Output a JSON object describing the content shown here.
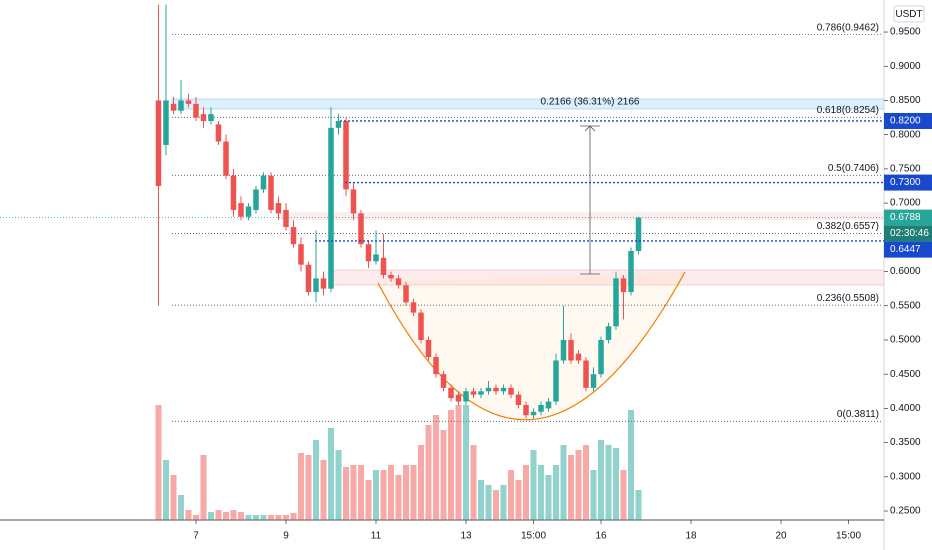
{
  "chart_data": {
    "type": "candlestick",
    "currency": "USDT",
    "up_color": "#26a69a",
    "down_color": "#ef5350",
    "open": [
      0.85,
      0.785,
      0.845,
      0.835,
      0.85,
      0.845,
      0.83,
      0.82,
      0.815,
      0.79,
      0.74,
      0.7,
      0.68,
      0.69,
      0.72,
      0.74,
      0.7,
      0.69,
      0.665,
      0.64,
      0.61,
      0.57,
      0.59,
      0.575,
      0.81,
      0.82,
      0.72,
      0.685,
      0.64,
      0.615,
      0.62,
      0.595,
      0.59,
      0.58,
      0.555,
      0.54,
      0.5,
      0.475,
      0.45,
      0.43,
      0.42,
      0.41,
      0.425,
      0.42,
      0.425,
      0.43,
      0.425,
      0.43,
      0.42,
      0.405,
      0.39,
      0.395,
      0.4,
      0.41,
      0.47,
      0.5,
      0.48,
      0.47,
      0.43,
      0.45,
      0.5,
      0.52,
      0.59,
      0.57,
      0.63
    ],
    "high": [
      0.99,
      0.99,
      0.855,
      0.88,
      0.86,
      0.855,
      0.84,
      0.84,
      0.82,
      0.8,
      0.75,
      0.71,
      0.7,
      0.725,
      0.745,
      0.745,
      0.71,
      0.7,
      0.675,
      0.65,
      0.615,
      0.66,
      0.6,
      0.84,
      0.83,
      0.825,
      0.73,
      0.69,
      0.645,
      0.66,
      0.655,
      0.6,
      0.595,
      0.585,
      0.56,
      0.545,
      0.505,
      0.48,
      0.455,
      0.435,
      0.425,
      0.43,
      0.43,
      0.43,
      0.44,
      0.435,
      0.435,
      0.435,
      0.425,
      0.41,
      0.4,
      0.41,
      0.415,
      0.48,
      0.55,
      0.51,
      0.485,
      0.475,
      0.46,
      0.505,
      0.525,
      0.6,
      0.595,
      0.635,
      0.68
    ],
    "low": [
      0.55,
      0.77,
      0.83,
      0.83,
      0.84,
      0.82,
      0.81,
      0.815,
      0.785,
      0.735,
      0.68,
      0.675,
      0.675,
      0.685,
      0.715,
      0.685,
      0.675,
      0.66,
      0.635,
      0.6,
      0.565,
      0.555,
      0.565,
      0.57,
      0.8,
      0.71,
      0.675,
      0.635,
      0.605,
      0.61,
      0.59,
      0.585,
      0.575,
      0.55,
      0.535,
      0.495,
      0.47,
      0.445,
      0.425,
      0.41,
      0.405,
      0.405,
      0.415,
      0.415,
      0.42,
      0.42,
      0.42,
      0.415,
      0.4,
      0.385,
      0.385,
      0.39,
      0.395,
      0.405,
      0.465,
      0.465,
      0.465,
      0.425,
      0.425,
      0.445,
      0.495,
      0.515,
      0.53,
      0.565,
      0.625
    ],
    "close": [
      0.725,
      0.85,
      0.835,
      0.85,
      0.845,
      0.825,
      0.82,
      0.83,
      0.79,
      0.74,
      0.69,
      0.68,
      0.695,
      0.72,
      0.74,
      0.69,
      0.685,
      0.665,
      0.64,
      0.61,
      0.57,
      0.59,
      0.575,
      0.81,
      0.82,
      0.72,
      0.685,
      0.64,
      0.615,
      0.625,
      0.595,
      0.59,
      0.58,
      0.555,
      0.54,
      0.5,
      0.475,
      0.45,
      0.43,
      0.415,
      0.41,
      0.425,
      0.42,
      0.425,
      0.43,
      0.425,
      0.43,
      0.42,
      0.405,
      0.39,
      0.395,
      0.405,
      0.41,
      0.47,
      0.5,
      0.47,
      0.47,
      0.43,
      0.45,
      0.5,
      0.52,
      0.59,
      0.57,
      0.63,
      0.6788
    ],
    "volume": [
      115,
      60,
      45,
      25,
      10,
      5,
      65,
      8,
      10,
      8,
      10,
      8,
      5,
      5,
      5,
      5,
      5,
      5,
      7,
      67,
      65,
      80,
      60,
      92,
      70,
      53,
      55,
      55,
      40,
      50,
      50,
      55,
      45,
      55,
      55,
      75,
      95,
      105,
      90,
      110,
      115,
      115,
      75,
      40,
      35,
      30,
      35,
      50,
      40,
      55,
      70,
      55,
      45,
      55,
      75,
      65,
      70,
      75,
      50,
      80,
      75,
      72,
      50,
      110,
      30
    ],
    "volume_lim": [
      0,
      520
    ],
    "xlim": [
      -21.13,
      96.73
    ],
    "ylim": [
      0.2369,
      0.9968
    ],
    "xticks": [
      {
        "value": 5,
        "label": "7"
      },
      {
        "value": 17,
        "label": "9"
      },
      {
        "value": 29,
        "label": "11"
      },
      {
        "value": 41,
        "label": "13"
      },
      {
        "value": 50,
        "label": "15:00"
      },
      {
        "value": 59,
        "label": "16"
      },
      {
        "value": 71,
        "label": "18"
      },
      {
        "value": 83,
        "label": "20"
      },
      {
        "value": 92,
        "label": "15:00"
      }
    ],
    "yticks": [
      {
        "value": 0.95,
        "label": "0.9500"
      },
      {
        "value": 0.9,
        "label": "0.9000"
      },
      {
        "value": 0.85,
        "label": "0.8500"
      },
      {
        "value": 0.8,
        "label": "0.8000"
      },
      {
        "value": 0.75,
        "label": "0.7500"
      },
      {
        "value": 0.7,
        "label": "0.7000"
      },
      {
        "value": 0.65,
        "label": "0.6500"
      },
      {
        "value": 0.6,
        "label": "0.6000"
      },
      {
        "value": 0.55,
        "label": "0.5500"
      },
      {
        "value": 0.5,
        "label": "0.5000"
      },
      {
        "value": 0.45,
        "label": "0.4500"
      },
      {
        "value": 0.4,
        "label": "0.4000"
      },
      {
        "value": 0.35,
        "label": "0.3500"
      },
      {
        "value": 0.3,
        "label": "0.3000"
      },
      {
        "value": 0.25,
        "label": "0.2500"
      }
    ],
    "fib_levels": [
      {
        "value": 0.9462,
        "label": "0.786(0.9462)"
      },
      {
        "value": 0.8254,
        "label": "0.618(0.8254)"
      },
      {
        "value": 0.7406,
        "label": "0.5(0.7406)"
      },
      {
        "value": 0.6557,
        "label": "0.382(0.6557)"
      },
      {
        "value": 0.5508,
        "label": "0.236(0.5508)"
      },
      {
        "value": 0.3811,
        "label": "0(0.3811)"
      }
    ],
    "price_lines": [
      {
        "value": 0.82,
        "label": "0.8200"
      },
      {
        "value": 0.73,
        "label": "0.7300"
      },
      {
        "value": 0.6447,
        "label": "0.6447"
      }
    ],
    "last_price": {
      "value": 0.6788,
      "label": "0.6788"
    },
    "countdown": "02:30:46",
    "measure_label": "0.2166 (36.31%) 2166"
  }
}
